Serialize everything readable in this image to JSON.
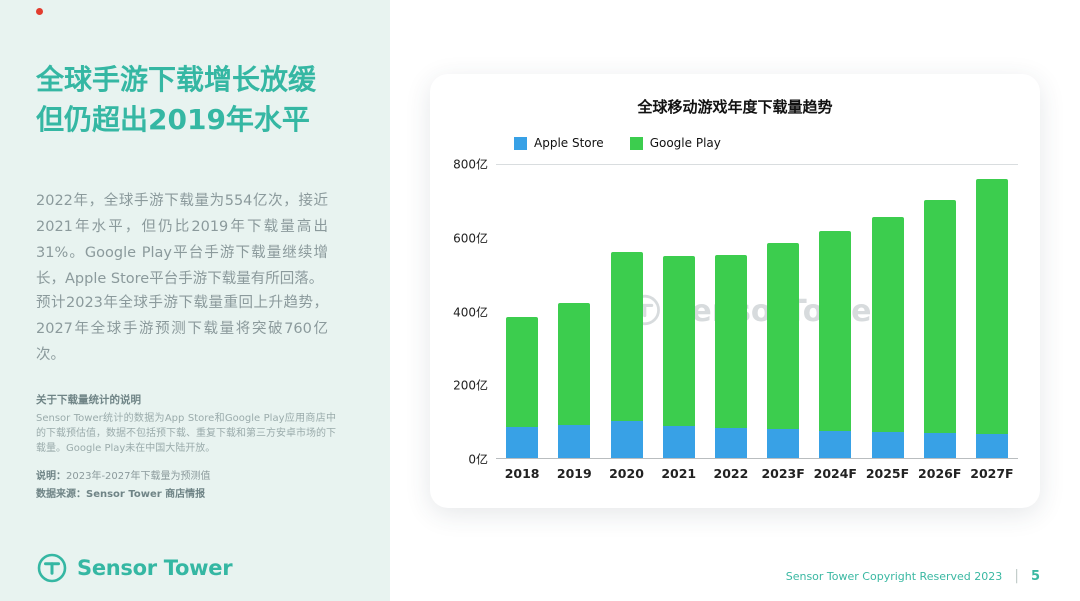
{
  "page": {
    "footer": {
      "copyright": "Sensor Tower Copyright Reserved 2023",
      "page_number": "5"
    }
  },
  "colors": {
    "accent_teal": "#35b7a3",
    "sidebar_background": "#e8f3f0",
    "apple_blue": "#38a1e6",
    "google_green": "#3ccd4e"
  },
  "sidebar": {
    "title_line1": "全球手游下载增长放缓",
    "title_line2": "但仍超出2019年水平",
    "paragraphs": [
      "2022年，全球手游下载量为554亿次，接近2021年水平，但仍比2019年下载量高出31%。Google Play平台手游下载量继续增长，Apple Store平台手游下载量有所回落。",
      "预计2023年全球手游下载量重回上升趋势，2027年全球手游预测下载量将突破760亿次。"
    ],
    "note_title": "关于下载量统计的说明",
    "note_body": "Sensor Tower统计的数据为App Store和Google Play应用商店中的下载预估值，数据不包括预下载、重复下载和第三方安卓市场的下载量。Google Play未在中国大陆开放。",
    "note2_label": "说明：",
    "note2_text": "2023年-2027年下载量为预测值",
    "source_label": "数据来源：",
    "source_text": "Sensor Tower 商店情报",
    "logo_text": "Sensor Tower"
  },
  "chart_data": {
    "type": "bar",
    "stacked": true,
    "title": "全球移动游戏年度下载量趋势",
    "categories": [
      "2018",
      "2019",
      "2020",
      "2021",
      "2022",
      "2023F",
      "2024F",
      "2025F",
      "2026F",
      "2027F"
    ],
    "series": [
      {
        "name": "Apple Store",
        "color": "#38a1e6",
        "values": [
          85,
          90,
          100,
          88,
          81,
          78,
          74,
          72,
          68,
          66
        ]
      },
      {
        "name": "Google Play",
        "color": "#3ccd4e",
        "values": [
          300,
          332,
          462,
          464,
          473,
          509,
          547,
          585,
          637,
          697
        ]
      }
    ],
    "totals": [
      385,
      422,
      562,
      552,
      554,
      587,
      621,
      657,
      705,
      763
    ],
    "ylim": [
      0,
      800
    ],
    "yticks": [
      0,
      200,
      400,
      600,
      800
    ],
    "ytick_suffix": "亿",
    "xlabel": "",
    "ylabel": "",
    "grid": "top-line-only",
    "legend_position": "top-left",
    "watermark": "SensorTower"
  }
}
